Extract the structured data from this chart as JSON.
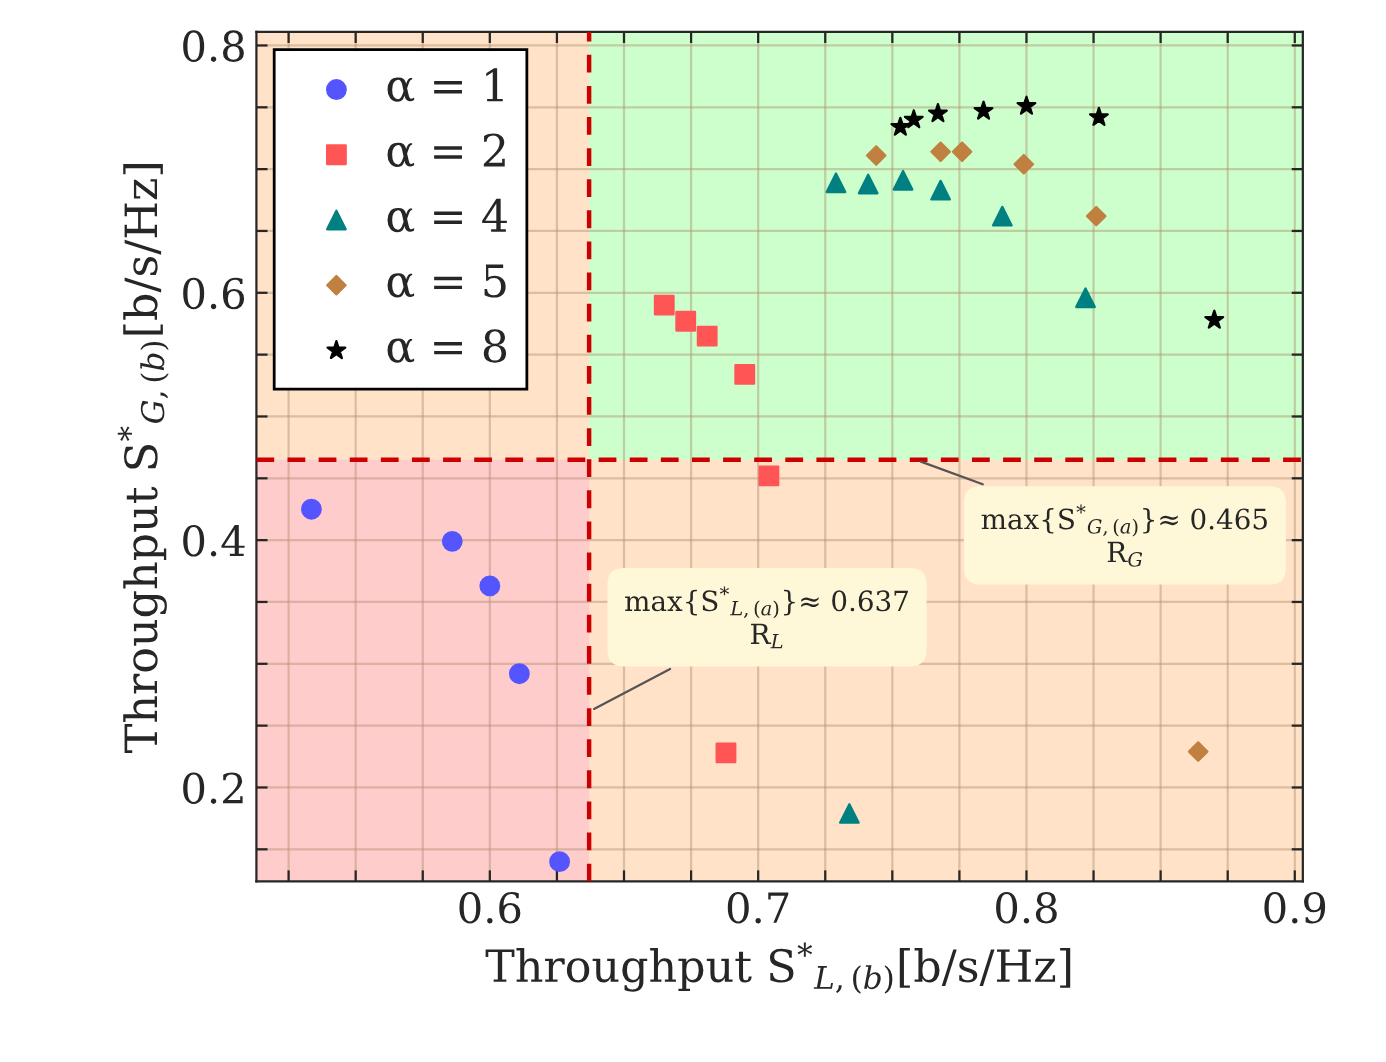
{
  "chart_data": {
    "type": "scatter",
    "xlabel": "Throughput S$^{*}$$_{L,(b)}$[b/s/Hz]",
    "ylabel": "Throughput S$^{*}$$_{G,(b)}$[b/s/Hz]",
    "xlim": [
      0.513,
      0.903
    ],
    "ylim": [
      0.124,
      0.811
    ],
    "xticks": [
      {
        "value": 0.525,
        "label": null
      },
      {
        "value": 0.55,
        "label": null
      },
      {
        "value": 0.575,
        "label": null
      },
      0.6,
      {
        "value": 0.625,
        "label": null
      },
      {
        "value": 0.65,
        "label": null
      },
      {
        "value": 0.675,
        "label": null
      },
      0.7,
      {
        "value": 0.725,
        "label": null
      },
      {
        "value": 0.75,
        "label": null
      },
      {
        "value": 0.775,
        "label": null
      },
      0.8,
      {
        "value": 0.825,
        "label": null
      },
      {
        "value": 0.85,
        "label": null
      },
      {
        "value": 0.875,
        "label": null
      },
      0.9
    ],
    "yticks": [
      {
        "value": 0.15,
        "label": null
      },
      0.2,
      {
        "value": 0.25,
        "label": null
      },
      {
        "value": 0.3,
        "label": null
      },
      {
        "value": 0.35,
        "label": null
      },
      0.4,
      {
        "value": 0.45,
        "label": null
      },
      {
        "value": 0.5,
        "label": null
      },
      {
        "value": 0.55,
        "label": null
      },
      0.6,
      {
        "value": 0.65,
        "label": null
      },
      {
        "value": 0.7,
        "label": null
      },
      {
        "value": 0.75,
        "label": null
      },
      0.8
    ],
    "grid": true,
    "legend": "top left",
    "series": [
      {
        "name": "α = 1",
        "color": "#5555ff",
        "marker": "circle",
        "x": [
          0.5335,
          0.586,
          0.6,
          0.611,
          0.626
        ],
        "values": [
          0.425,
          0.399,
          0.363,
          0.292,
          0.14
        ]
      },
      {
        "name": "α = 2",
        "color": "#ff5555",
        "marker": "square",
        "x": [
          0.665,
          0.673,
          0.681,
          0.695,
          0.704,
          0.688
        ],
        "values": [
          0.59,
          0.577,
          0.565,
          0.534,
          0.452,
          0.228
        ]
      },
      {
        "name": "α = 4",
        "color": "#008080",
        "marker": "triangle",
        "x": [
          0.729,
          0.741,
          0.754,
          0.768,
          0.791,
          0.822,
          0.734
        ],
        "values": [
          0.689,
          0.688,
          0.691,
          0.683,
          0.662,
          0.596,
          0.179
        ]
      },
      {
        "name": "α = 5",
        "color": "#bf8040",
        "marker": "diamond",
        "x": [
          0.744,
          0.768,
          0.776,
          0.799,
          0.826,
          0.864
        ],
        "values": [
          0.711,
          0.714,
          0.714,
          0.704,
          0.662,
          0.229
        ]
      },
      {
        "name": "α = 8",
        "color": "#000000",
        "marker": "star",
        "x": [
          0.753,
          0.758,
          0.767,
          0.784,
          0.8,
          0.827,
          0.87
        ],
        "values": [
          0.734,
          0.74,
          0.745,
          0.747,
          0.751,
          0.742,
          0.578
        ]
      }
    ],
    "ref_lines": [
      {
        "axis": "x",
        "value": 0.637,
        "label": "max{S$^{*}$$_{L,(a)}$}≈ 0.637\nR$_{L}$",
        "color": "#cc0000",
        "line_style": "dashed"
      },
      {
        "axis": "y",
        "value": 0.465,
        "label": "max{S$^{*}$$_{G,(a)}$}≈ 0.465\nR$_{G}$",
        "color": "#cc0000",
        "line_style": "dashed"
      }
    ],
    "bands": [
      {
        "axis": "x",
        "from": 0.513,
        "to": 0.903,
        "color": "#ffe2c8"
      },
      {
        "axis": "x",
        "from": 0.513,
        "to": 0.637,
        "color": "#ffcccc"
      },
      {
        "axis": "y",
        "from": 0.465,
        "to": 0.811,
        "color": "#ccffcc"
      }
    ]
  }
}
